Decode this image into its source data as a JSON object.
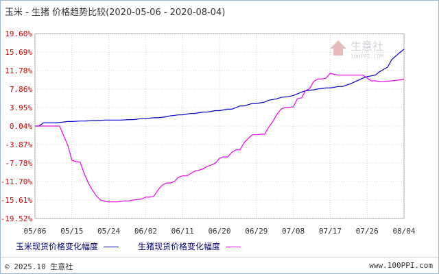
{
  "title": "玉米 - 生猪 价格趋势比较(2020-05-06 - 2020-08-04)",
  "watermark": {
    "text": "生意社",
    "sub": "100PPI.COM"
  },
  "legend": {
    "corn": "玉米现货价格变化幅度",
    "hog": "生猪现货价格变化幅度"
  },
  "footer": {
    "copyright": "© 2025.10 生意社",
    "site": "www.100PPI.com"
  },
  "colors": {
    "corn": "#0000cc",
    "hog": "#ee00ee",
    "ylabel": "#cc0000",
    "grid": "#d0d0d0"
  },
  "chart_data": {
    "type": "line",
    "x_tick_labels": [
      "05/06",
      "05/15",
      "05/24",
      "06/02",
      "06/11",
      "06/20",
      "06/29",
      "07/08",
      "07/17",
      "07/26",
      "08/04"
    ],
    "y_tick_labels": [
      "19.60%",
      "15.69%",
      "11.78%",
      "7.86%",
      "3.95%",
      "0.04%",
      "-3.87%",
      "-7.78%",
      "-11.70%",
      "-15.61%",
      "-19.52%"
    ],
    "ylim": [
      -19.52,
      19.6
    ],
    "x_range_days": [
      0,
      90
    ],
    "grid": true,
    "legend_position": "bottom",
    "series": [
      {
        "name": "玉米现货价格变化幅度",
        "key": "corn",
        "x": [
          0,
          1,
          2,
          5,
          7,
          8,
          9,
          11,
          12,
          14,
          15,
          17,
          18,
          20,
          21,
          23,
          24,
          26,
          27,
          29,
          30,
          32,
          33,
          35,
          36,
          38,
          39,
          41,
          42,
          44,
          45,
          47,
          48,
          50,
          51,
          53,
          54,
          56,
          57,
          59,
          60,
          62,
          63,
          65,
          66,
          68,
          69,
          71,
          72,
          74,
          75,
          77,
          78,
          80,
          81,
          83,
          84,
          86,
          87,
          89,
          90
        ],
        "y": [
          0.04,
          0.04,
          0.7,
          0.7,
          0.9,
          1.0,
          1.0,
          1.1,
          1.1,
          1.2,
          1.2,
          1.3,
          1.3,
          1.3,
          1.3,
          1.4,
          1.4,
          1.6,
          1.6,
          1.8,
          1.8,
          2.0,
          2.2,
          2.4,
          2.4,
          2.7,
          2.7,
          3.0,
          3.0,
          3.3,
          3.3,
          3.6,
          3.6,
          4.3,
          4.3,
          4.8,
          4.8,
          5.1,
          5.5,
          5.8,
          6.1,
          6.3,
          6.5,
          7.2,
          7.5,
          7.7,
          7.9,
          8.1,
          8.1,
          8.4,
          8.4,
          9.0,
          9.4,
          10.2,
          10.5,
          10.8,
          11.5,
          12.5,
          14.1,
          15.6,
          16.3
        ]
      },
      {
        "name": "生猪现货价格变化幅度",
        "key": "hog",
        "x": [
          0,
          1,
          2,
          3,
          4,
          5,
          6,
          7,
          8,
          9,
          10,
          11,
          12,
          13,
          14,
          15,
          16,
          17,
          18,
          19,
          20,
          21,
          22,
          23,
          24,
          25,
          26,
          27,
          28,
          29,
          30,
          31,
          32,
          33,
          34,
          35,
          36,
          37,
          38,
          39,
          40,
          41,
          42,
          43,
          44,
          45,
          46,
          47,
          48,
          49,
          50,
          51,
          52,
          53,
          54,
          55,
          56,
          57,
          58,
          59,
          60,
          61,
          62,
          63,
          64,
          65,
          66,
          67,
          68,
          69,
          70,
          71,
          72,
          73,
          74,
          75,
          76,
          77,
          78,
          79,
          80,
          81,
          82,
          83,
          84,
          85,
          86,
          87,
          88,
          89,
          90
        ],
        "y": [
          0.04,
          0.04,
          0.04,
          0.04,
          0.04,
          0.04,
          0.04,
          -2.0,
          -4.0,
          -7.2,
          -7.5,
          -7.6,
          -10.0,
          -12.0,
          -13.5,
          -14.8,
          -15.6,
          -15.9,
          -16.0,
          -16.0,
          -16.0,
          -15.9,
          -15.8,
          -15.8,
          -15.6,
          -15.5,
          -15.4,
          -15.0,
          -15.0,
          -14.8,
          -13.5,
          -12.5,
          -12.0,
          -12.0,
          -11.7,
          -10.8,
          -10.5,
          -10.5,
          -10.0,
          -9.5,
          -9.3,
          -9.0,
          -8.5,
          -8.2,
          -7.8,
          -6.8,
          -6.5,
          -6.5,
          -5.5,
          -5.0,
          -5.0,
          -3.5,
          -2.6,
          -1.8,
          -1.8,
          -1.7,
          -1.7,
          -0.2,
          1.0,
          2.5,
          3.6,
          4.0,
          4.0,
          4.1,
          5.8,
          6.0,
          7.5,
          8.0,
          9.5,
          10.0,
          10.0,
          10.2,
          11.2,
          11.0,
          10.8,
          10.8,
          10.8,
          10.8,
          10.8,
          10.8,
          10.8,
          10.2,
          9.6,
          9.6,
          9.4,
          9.4,
          9.5,
          9.6,
          9.7,
          9.8,
          9.9
        ]
      }
    ]
  }
}
